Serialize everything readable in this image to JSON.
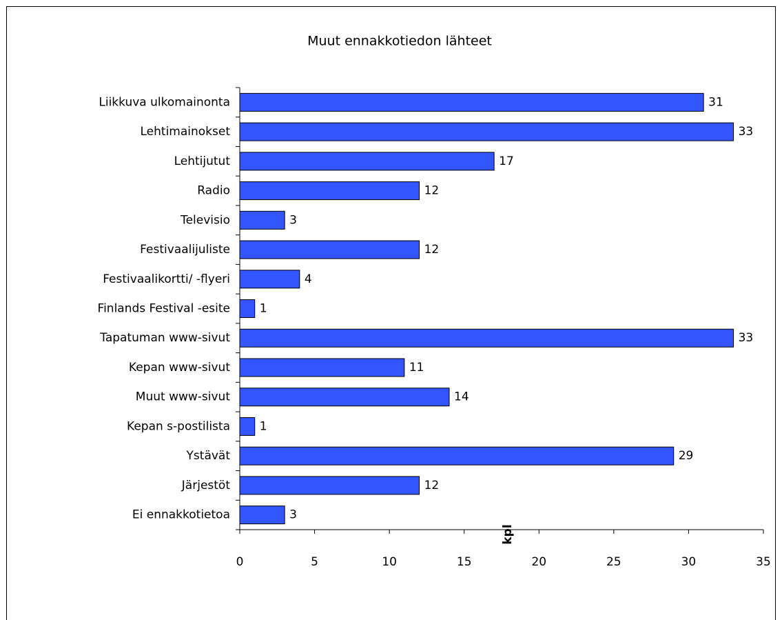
{
  "chart_data": {
    "type": "barh",
    "title": "Muut ennakkotiedon lähteet",
    "categories": [
      "Liikkuva ulkomainonta",
      "Lehtimainokset",
      "Lehtijutut",
      "Radio",
      "Televisio",
      "Festivaalijuliste",
      "Festivaalikortti/ -flyeri",
      "Finlands Festival -esite",
      "Tapatuman www-sivut",
      "Kepan www-sivut",
      "Muut www-sivut",
      "Kepan s-postilista",
      "Ystävät",
      "Järjestöt",
      "Ei ennakkotietoa"
    ],
    "values": [
      31,
      33,
      17,
      12,
      3,
      12,
      4,
      1,
      33,
      11,
      14,
      1,
      29,
      12,
      3
    ],
    "color": "#3355ff",
    "xlabel": "kpl",
    "xlim": [
      0,
      35
    ],
    "xticks": [
      0,
      5,
      10,
      15,
      20,
      25,
      30,
      35
    ],
    "grid": false
  }
}
